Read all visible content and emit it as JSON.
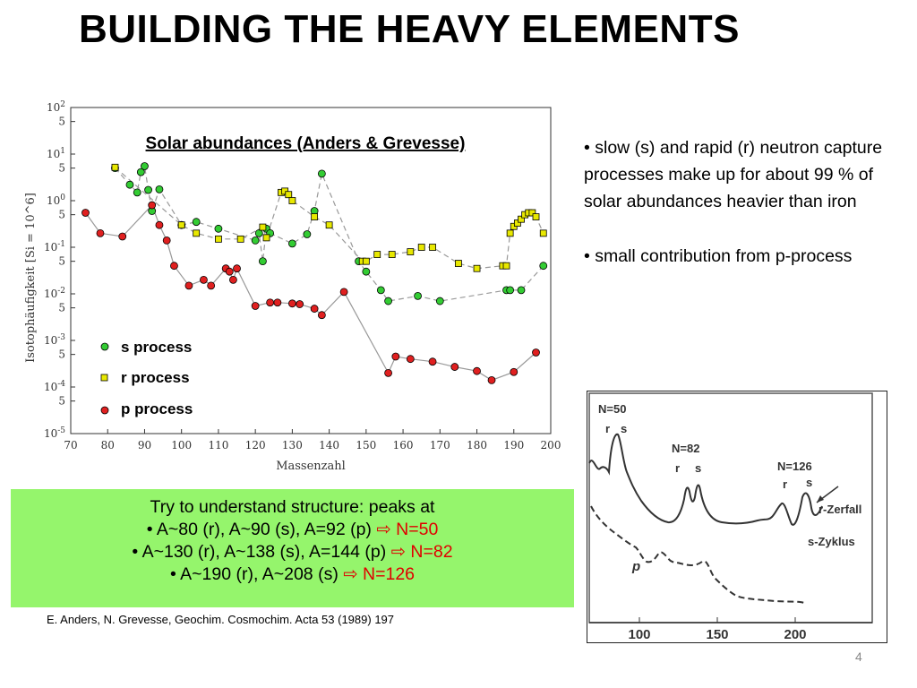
{
  "slide": {
    "title": "BUILDING THE HEAVY ELEMENTS",
    "bullets": [
      "• slow (s) and rapid (r) neutron capture processes make up for about 99 % of solar abundances heavier than iron",
      "• small contribution from p-process"
    ],
    "callout": {
      "line1": "Try to understand structure: peaks at",
      "line2_text": "• A~80 (r), A~90 (s), A=92 (p)",
      "line2_result": "N=50",
      "line3_text": "• A~130 (r), A~138 (s), A=144 (p)",
      "line3_result": "N=82",
      "line4_text": "• A~190 (r), A~208 (s)",
      "line4_result": "N=126",
      "arrow": "⇨",
      "highlight_color": "#95f56c"
    },
    "citation": "E. Anders, N. Grevesse, Geochim. Cosmochim. Acta 53 (1989) 197",
    "page_number": "4"
  },
  "chart_data": [
    {
      "type": "scatter",
      "title": "Solar abundances (Anders & Grevesse)",
      "xlabel": "Massenzahl",
      "ylabel": "Isotophäufigkeit [Si = 10^6]",
      "xlim": [
        70,
        200
      ],
      "ylim_log10": [
        -5,
        2
      ],
      "yscale": "log",
      "x_ticks": [
        70,
        80,
        90,
        100,
        110,
        120,
        130,
        140,
        150,
        160,
        170,
        180,
        190,
        200
      ],
      "y_tick_labels": [
        "10^2",
        "5",
        "10^1",
        "5",
        "10^0",
        "5",
        "10^-1",
        "5",
        "10^-2",
        "5",
        "10^-3",
        "5",
        "10^-4",
        "5",
        "10^-5"
      ],
      "legend_position": "bottom-left",
      "series": [
        {
          "name": "s process",
          "marker": "circle",
          "color": "#33cc33",
          "line": "dashed",
          "x": [
            82,
            86,
            88,
            89,
            90,
            91,
            92,
            94,
            100,
            104,
            110,
            120,
            121,
            122,
            123,
            124,
            130,
            134,
            136,
            138,
            148,
            150,
            154,
            156,
            164,
            170,
            188,
            189,
            192,
            198
          ],
          "y": [
            5.0,
            2.2,
            1.5,
            4.1,
            5.5,
            1.7,
            0.6,
            1.75,
            0.3,
            0.35,
            0.25,
            0.14,
            0.2,
            0.05,
            0.25,
            0.2,
            0.12,
            0.19,
            0.6,
            3.8,
            0.05,
            0.03,
            0.012,
            0.007,
            0.009,
            0.007,
            0.012,
            0.012,
            0.012,
            0.04
          ]
        },
        {
          "name": "r process",
          "marker": "square",
          "color": "#e8e800",
          "line": "dashed",
          "x": [
            82,
            100,
            104,
            110,
            116,
            122,
            123,
            127,
            128,
            129,
            130,
            136,
            140,
            149,
            150,
            153,
            157,
            162,
            165,
            168,
            175,
            180,
            187,
            188,
            189,
            190,
            191,
            192,
            193,
            194,
            195,
            196,
            198
          ],
          "y": [
            5.2,
            0.3,
            0.2,
            0.15,
            0.15,
            0.27,
            0.16,
            1.5,
            1.6,
            1.35,
            1.0,
            0.45,
            0.3,
            0.05,
            0.05,
            0.07,
            0.07,
            0.08,
            0.1,
            0.1,
            0.045,
            0.035,
            0.04,
            0.04,
            0.2,
            0.28,
            0.33,
            0.4,
            0.5,
            0.55,
            0.55,
            0.45,
            0.2
          ]
        },
        {
          "name": "p process",
          "marker": "circle",
          "color": "#e02020",
          "line": "solid",
          "x": [
            74,
            78,
            84,
            92,
            94,
            96,
            98,
            102,
            106,
            108,
            112,
            113,
            114,
            115,
            120,
            124,
            126,
            130,
            132,
            136,
            138,
            144,
            156,
            158,
            162,
            168,
            174,
            180,
            184,
            190,
            196
          ],
          "y": [
            0.55,
            0.2,
            0.17,
            0.8,
            0.3,
            0.14,
            0.04,
            0.015,
            0.02,
            0.015,
            0.035,
            0.03,
            0.02,
            0.035,
            0.0055,
            0.0065,
            0.0065,
            0.0062,
            0.006,
            0.0048,
            0.0035,
            0.011,
            0.0002,
            0.00045,
            0.0004,
            0.00035,
            0.00027,
            0.00022,
            0.00014,
            0.00021,
            0.00055
          ]
        }
      ]
    },
    {
      "type": "line",
      "xlabel": "",
      "x_ticks": [
        100,
        150,
        200
      ],
      "annotations": [
        "N=50",
        "r",
        "s",
        "N=82",
        "r",
        "s",
        "N=126",
        "r",
        "s",
        "r-Zerfall",
        "s-Zyklus",
        "p"
      ],
      "series": [
        {
          "name": "s",
          "line": "solid"
        },
        {
          "name": "p",
          "line": "dashed"
        }
      ]
    }
  ]
}
